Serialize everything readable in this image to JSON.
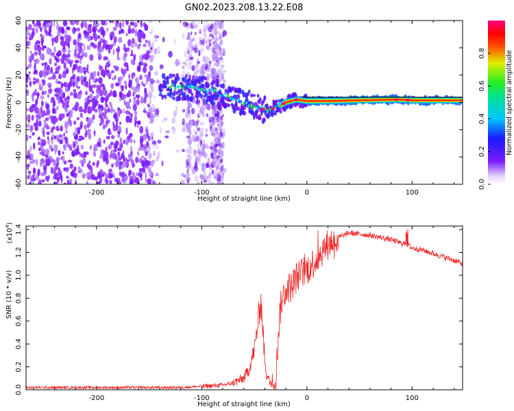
{
  "figure": {
    "title": "GN02.2023.208.13.22.E08"
  },
  "chart_data": [
    {
      "type": "heatmap",
      "panel": "top",
      "xlabel": "Height of straight line (km)",
      "ylabel": "Frequency (Hz)",
      "xlim": [
        -267,
        148
      ],
      "ylim": [
        -60,
        60
      ],
      "xticks": [
        -200,
        -100,
        0,
        100
      ],
      "xtick_labels": [
        "-200",
        "-100",
        "0",
        "100"
      ],
      "yticks": [
        -60,
        -40,
        -20,
        0,
        20,
        40,
        60
      ],
      "ytick_labels": [
        "-60",
        "-40",
        "-20",
        "0",
        "20",
        "40",
        "60"
      ],
      "colorbar": {
        "label": "Normalized spectral amplitude",
        "range": [
          0,
          1
        ],
        "ticks": [
          0.0,
          0.2,
          0.4,
          0.6,
          0.8
        ],
        "tick_labels": [
          "0.0",
          "0.2",
          "0.4",
          "0.6",
          "0.8"
        ],
        "colormap": "rainbow (white→purple→blue→cyan→green→yellow→red→magenta)"
      },
      "description_points": {
        "dominant_frequency_ridge": {
          "x": [
            -135,
            -120,
            -100,
            -85,
            -70,
            -55,
            -45,
            -38,
            -30,
            -20,
            -10,
            0,
            20,
            50,
            80,
            90,
            100,
            148
          ],
          "y": [
            12,
            11,
            10,
            7,
            3,
            -1,
            -4,
            -6,
            -4,
            0,
            2,
            1,
            1,
            1.5,
            2,
            2,
            1.5,
            1.5
          ]
        }
      }
    },
    {
      "type": "line",
      "panel": "bottom",
      "xlabel": "Height of straight line (km)",
      "ylabel": "SNR (10 * v/v)",
      "y_multiplier_label": "(x10",
      "y_multiplier_exp": "4",
      "y_multiplier_close": ")",
      "xlim": [
        -267,
        148
      ],
      "ylim": [
        0,
        1.43
      ],
      "xticks": [
        -200,
        -100,
        0,
        100
      ],
      "xtick_labels": [
        "-200",
        "-100",
        "0",
        "100"
      ],
      "yticks": [
        0.0,
        0.2,
        0.4,
        0.6,
        0.8,
        1.0,
        1.2,
        1.4
      ],
      "ytick_labels": [
        "0.0",
        "0.2",
        "0.4",
        "0.6",
        "0.8",
        "1.0",
        "1.2",
        "1.4"
      ],
      "series": [
        {
          "color": "#ee2222",
          "x": [
            -267,
            -200,
            -150,
            -120,
            -100,
            -80,
            -70,
            -60,
            -55,
            -50,
            -46,
            -44,
            -42,
            -40,
            -38,
            -35,
            -30,
            -28,
            -26,
            -24,
            -20,
            -15,
            -10,
            -5,
            0,
            5,
            10,
            15,
            20,
            25,
            30,
            40,
            50,
            60,
            70,
            80,
            90,
            95,
            100,
            110,
            120,
            130,
            140,
            148
          ],
          "y": [
            0.02,
            0.02,
            0.02,
            0.02,
            0.03,
            0.04,
            0.06,
            0.1,
            0.18,
            0.35,
            0.62,
            0.8,
            0.55,
            0.25,
            0.12,
            0.06,
            0.05,
            0.35,
            0.65,
            0.78,
            0.88,
            0.9,
            0.98,
            1.02,
            1.05,
            1.1,
            1.15,
            1.22,
            1.27,
            1.3,
            1.33,
            1.37,
            1.36,
            1.35,
            1.33,
            1.31,
            1.28,
            1.27,
            1.24,
            1.22,
            1.19,
            1.16,
            1.13,
            1.1
          ]
        }
      ]
    }
  ]
}
